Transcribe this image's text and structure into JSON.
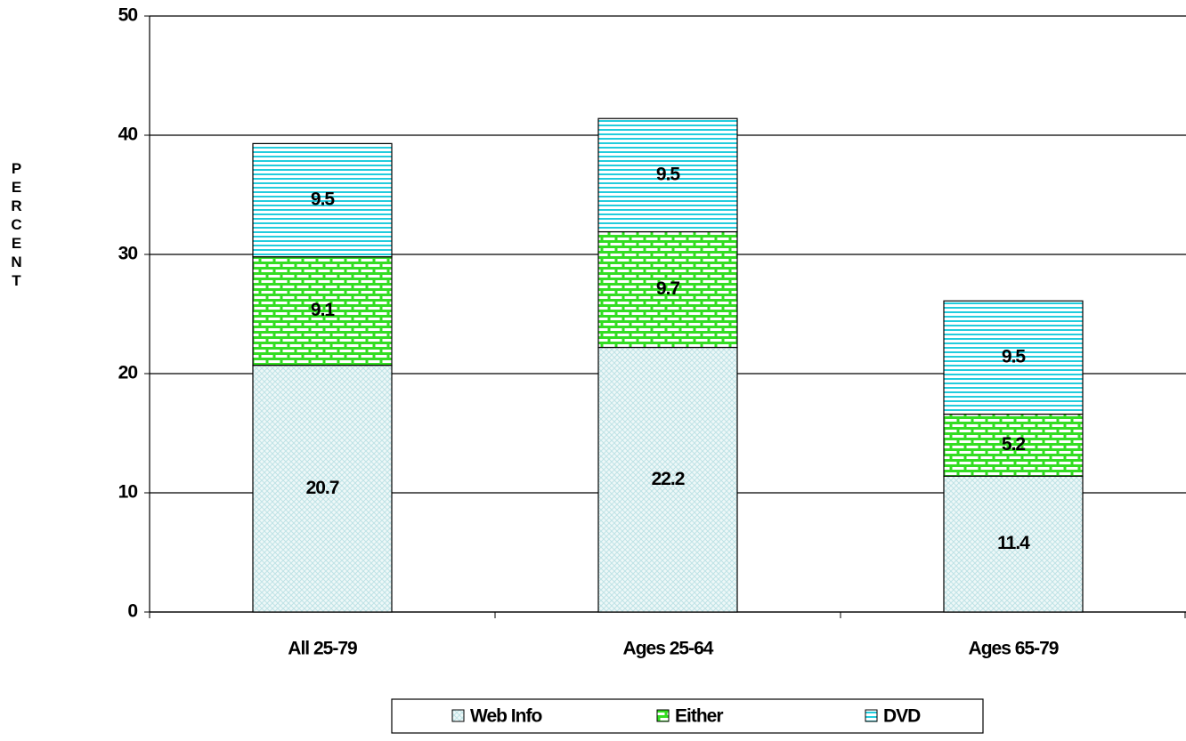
{
  "chart_data": {
    "type": "stacked-bar",
    "y_label": "PERCENT",
    "categories": [
      "All 25-79",
      "Ages 25-64",
      "Ages 65-79"
    ],
    "series": [
      {
        "name": "Web Info",
        "color": "#bfe3e6",
        "values": [
          20.7,
          22.2,
          11.4
        ]
      },
      {
        "name": "Either",
        "color": "#33dd22",
        "values": [
          9.1,
          9.7,
          5.2
        ]
      },
      {
        "name": "DVD",
        "color": "#22ccdd",
        "values": [
          9.5,
          9.5,
          9.5
        ]
      }
    ],
    "ylim": [
      0,
      50
    ],
    "yticks": [
      0,
      10,
      20,
      30,
      40,
      50
    ],
    "grid": true
  }
}
